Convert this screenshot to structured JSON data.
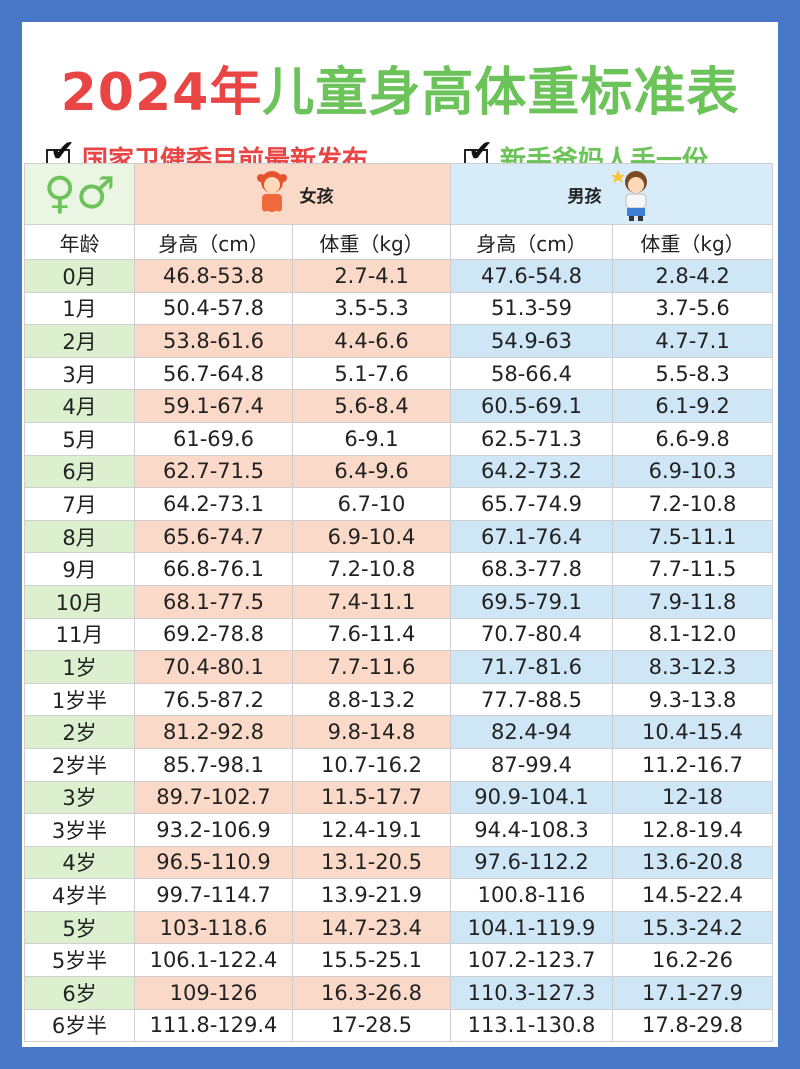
{
  "title": {
    "part1": "2024年",
    "part2": "儿童身高体重标准表"
  },
  "subtitle_left": "国家卫健委目前最新发布",
  "subtitle_right": "新手爸妈人手一份",
  "gender_icon": "♀♂",
  "girl_label": "女孩",
  "boy_label": "男孩",
  "columns": {
    "age": "年龄",
    "g_height": "身高（cm）",
    "g_weight": "体重（kg）",
    "b_height": "身高（cm）",
    "b_weight": "体重（kg）"
  },
  "rows": [
    {
      "age": "0月",
      "gh": "46.8-53.8",
      "gw": "2.7-4.1",
      "bh": "47.6-54.8",
      "bw": "2.8-4.2"
    },
    {
      "age": "1月",
      "gh": "50.4-57.8",
      "gw": "3.5-5.3",
      "bh": "51.3-59",
      "bw": "3.7-5.6"
    },
    {
      "age": "2月",
      "gh": "53.8-61.6",
      "gw": "4.4-6.6",
      "bh": "54.9-63",
      "bw": "4.7-7.1"
    },
    {
      "age": "3月",
      "gh": "56.7-64.8",
      "gw": "5.1-7.6",
      "bh": "58-66.4",
      "bw": "5.5-8.3"
    },
    {
      "age": "4月",
      "gh": "59.1-67.4",
      "gw": "5.6-8.4",
      "bh": "60.5-69.1",
      "bw": "6.1-9.2"
    },
    {
      "age": "5月",
      "gh": "61-69.6",
      "gw": "6-9.1",
      "bh": "62.5-71.3",
      "bw": "6.6-9.8"
    },
    {
      "age": "6月",
      "gh": "62.7-71.5",
      "gw": "6.4-9.6",
      "bh": "64.2-73.2",
      "bw": "6.9-10.3"
    },
    {
      "age": "7月",
      "gh": "64.2-73.1",
      "gw": "6.7-10",
      "bh": "65.7-74.9",
      "bw": "7.2-10.8"
    },
    {
      "age": "8月",
      "gh": "65.6-74.7",
      "gw": "6.9-10.4",
      "bh": "67.1-76.4",
      "bw": "7.5-11.1"
    },
    {
      "age": "9月",
      "gh": "66.8-76.1",
      "gw": "7.2-10.8",
      "bh": "68.3-77.8",
      "bw": "7.7-11.5"
    },
    {
      "age": "10月",
      "gh": "68.1-77.5",
      "gw": "7.4-11.1",
      "bh": "69.5-79.1",
      "bw": "7.9-11.8"
    },
    {
      "age": "11月",
      "gh": "69.2-78.8",
      "gw": "7.6-11.4",
      "bh": "70.7-80.4",
      "bw": "8.1-12.0"
    },
    {
      "age": "1岁",
      "gh": "70.4-80.1",
      "gw": "7.7-11.6",
      "bh": "71.7-81.6",
      "bw": "8.3-12.3"
    },
    {
      "age": "1岁半",
      "gh": "76.5-87.2",
      "gw": "8.8-13.2",
      "bh": "77.7-88.5",
      "bw": "9.3-13.8"
    },
    {
      "age": "2岁",
      "gh": "81.2-92.8",
      "gw": "9.8-14.8",
      "bh": "82.4-94",
      "bw": "10.4-15.4"
    },
    {
      "age": "2岁半",
      "gh": "85.7-98.1",
      "gw": "10.7-16.2",
      "bh": "87-99.4",
      "bw": "11.2-16.7"
    },
    {
      "age": "3岁",
      "gh": "89.7-102.7",
      "gw": "11.5-17.7",
      "bh": "90.9-104.1",
      "bw": "12-18"
    },
    {
      "age": "3岁半",
      "gh": "93.2-106.9",
      "gw": "12.4-19.1",
      "bh": "94.4-108.3",
      "bw": "12.8-19.4"
    },
    {
      "age": "4岁",
      "gh": "96.5-110.9",
      "gw": "13.1-20.5",
      "bh": "97.6-112.2",
      "bw": "13.6-20.8"
    },
    {
      "age": "4岁半",
      "gh": "99.7-114.7",
      "gw": "13.9-21.9",
      "bh": "100.8-116",
      "bw": "14.5-22.4"
    },
    {
      "age": "5岁",
      "gh": "103-118.6",
      "gw": "14.7-23.4",
      "bh": "104.1-119.9",
      "bw": "15.3-24.2"
    },
    {
      "age": "5岁半",
      "gh": "106.1-122.4",
      "gw": "15.5-25.1",
      "bh": "107.2-123.7",
      "bw": "16.2-26"
    },
    {
      "age": "6岁",
      "gh": "109-126",
      "gw": "16.3-26.8",
      "bh": "110.3-127.3",
      "bw": "17.1-27.9"
    },
    {
      "age": "6岁半",
      "gh": "111.8-129.4",
      "gw": "17-28.5",
      "bh": "113.1-130.8",
      "bw": "17.8-29.8"
    }
  ],
  "colors": {
    "border": "#4a78c9",
    "title_red": "#e94545",
    "title_green": "#6cc35a",
    "girl": "#fbd9c9",
    "boy": "#cfe6f7",
    "age": "#dcf0cf"
  }
}
